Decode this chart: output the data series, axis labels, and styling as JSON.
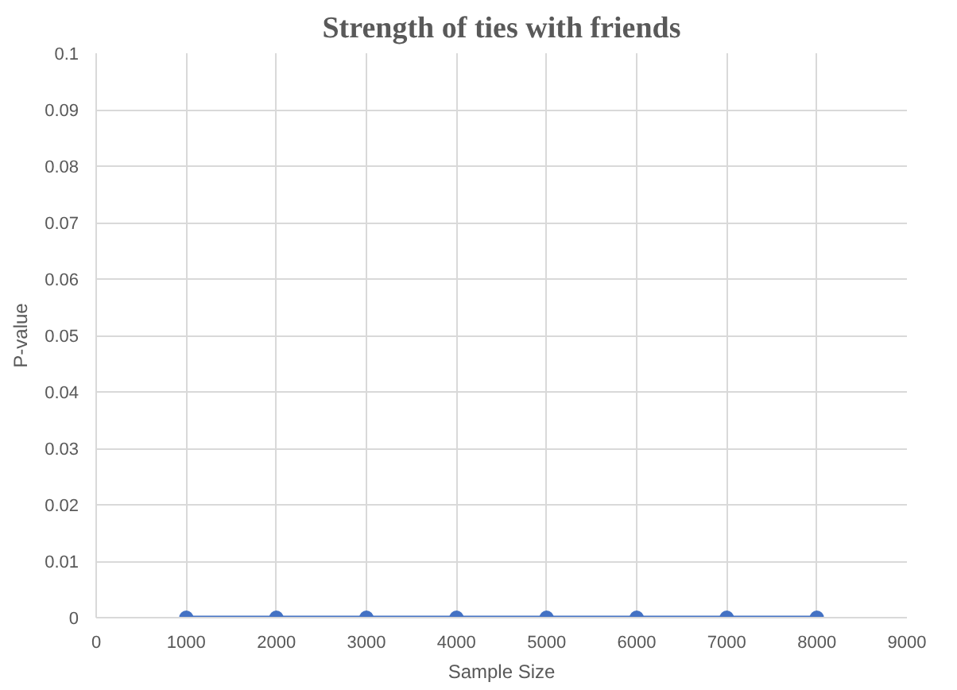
{
  "chart_data": {
    "type": "line",
    "title": "Strength of ties with friends",
    "xlabel": "Sample Size",
    "ylabel": "P-value",
    "x": [
      1000,
      2000,
      3000,
      4000,
      5000,
      6000,
      7000,
      8000
    ],
    "series": [
      {
        "color": "#4472c4",
        "values": [
          0,
          0,
          0,
          0,
          0,
          0,
          0,
          0
        ]
      }
    ],
    "xlim": [
      0,
      9000
    ],
    "xticks": [
      0,
      1000,
      2000,
      3000,
      4000,
      5000,
      6000,
      7000,
      8000,
      9000
    ],
    "ylim": [
      0,
      0.1
    ],
    "yticks": [
      0,
      0.01,
      0.02,
      0.03,
      0.04,
      0.05,
      0.06,
      0.07,
      0.08,
      0.09,
      0.1
    ],
    "grid": true,
    "marker": "circle",
    "line_style": "solid"
  }
}
